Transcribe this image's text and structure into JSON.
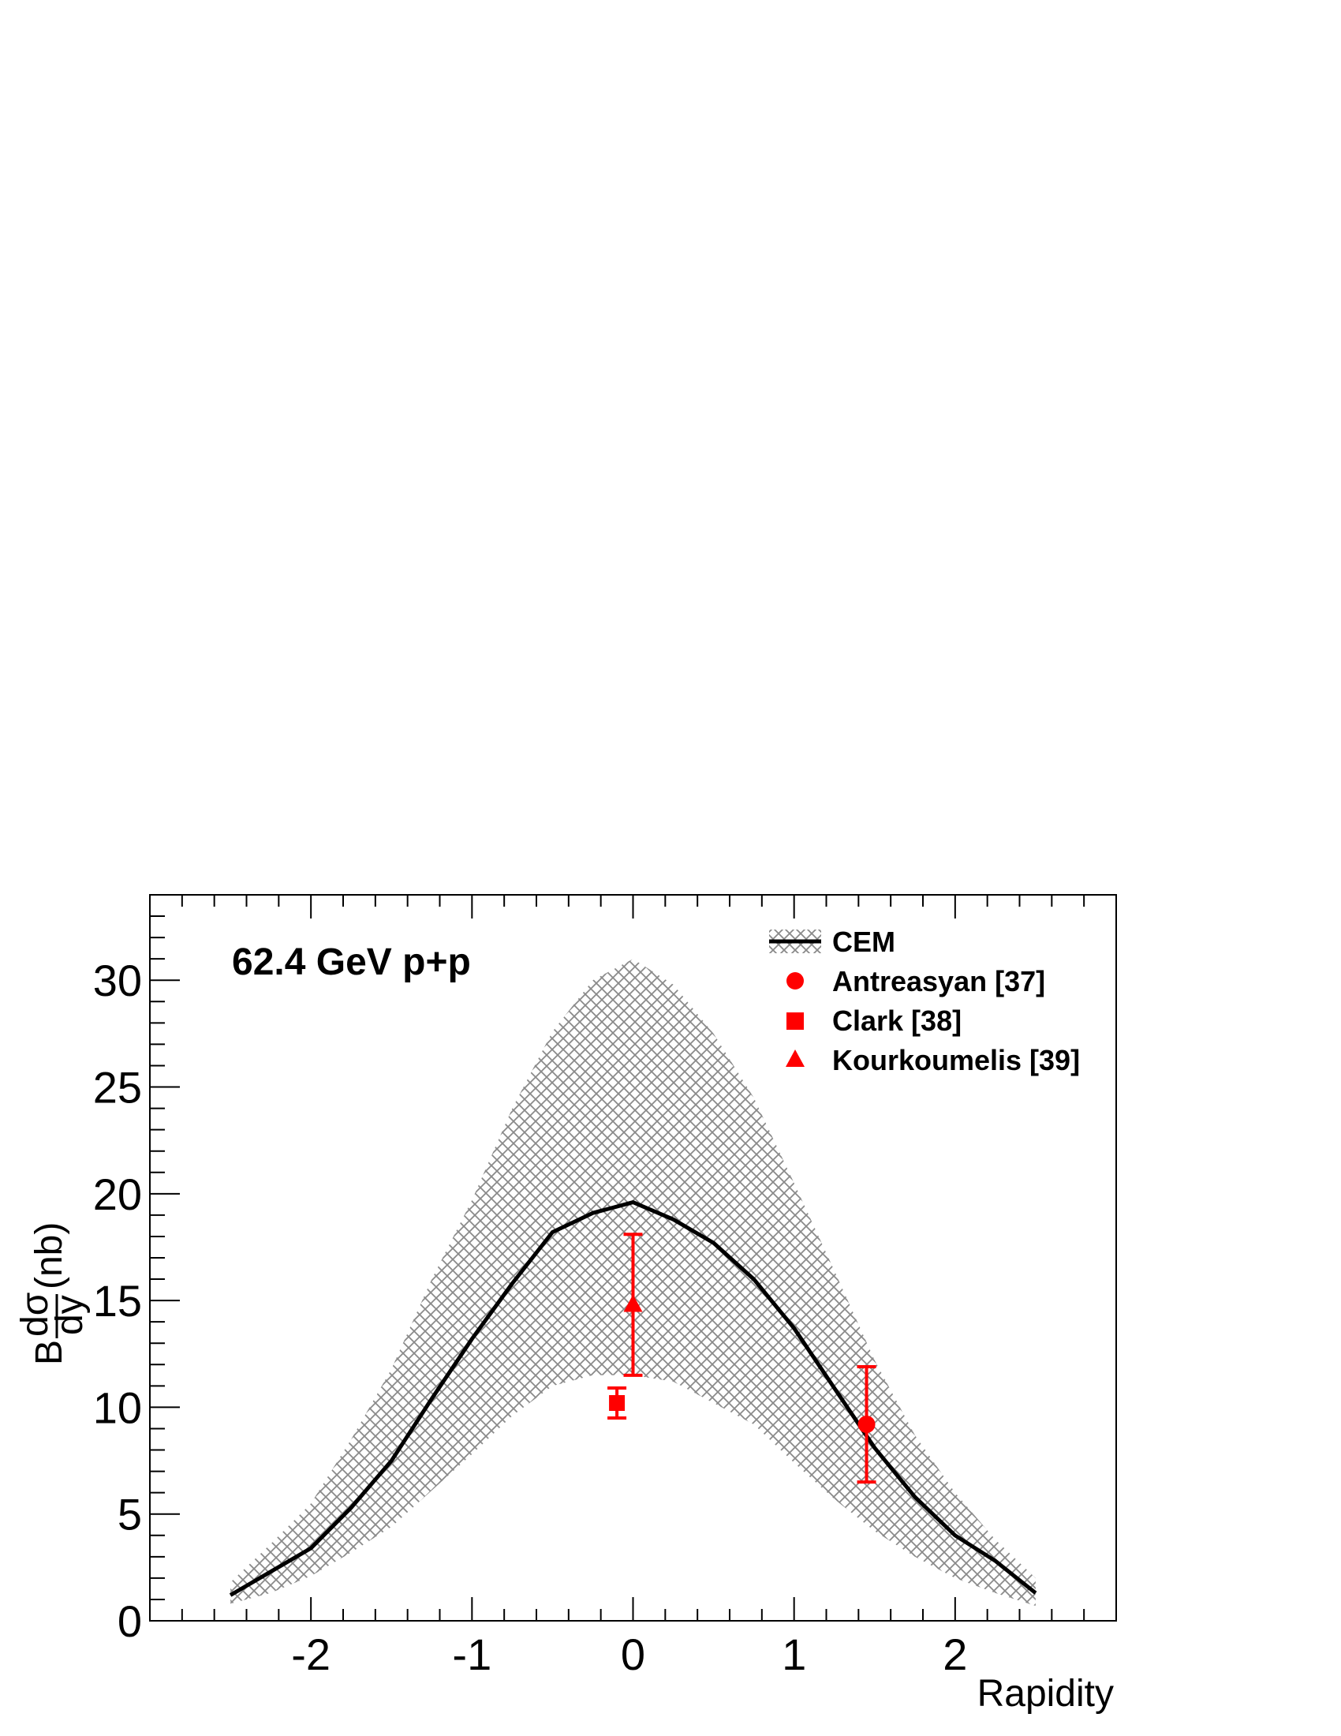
{
  "chart_data": {
    "type": "line",
    "annotation": "62.4 GeV p+p",
    "xlabel": "Rapidity",
    "ylabel": {
      "prefix": "B",
      "frac_num": "dσ",
      "frac_den": "dy",
      "unit": "(nb)"
    },
    "xlim": [
      -3.0,
      3.0
    ],
    "ylim": [
      0,
      34
    ],
    "x_major_ticks": [
      -2,
      -1,
      0,
      1,
      2
    ],
    "x_tick_labels": [
      "-2",
      "-1",
      "0",
      "1",
      "2"
    ],
    "y_major_ticks": [
      0,
      5,
      10,
      15,
      20,
      25,
      30
    ],
    "y_tick_labels": [
      "0",
      "5",
      "10",
      "15",
      "20",
      "25",
      "30"
    ],
    "legend": {
      "placement": "top-right",
      "entries": [
        {
          "label": "CEM",
          "marker": "line-band"
        },
        {
          "label": "Antreasyan [37]",
          "marker": "circle"
        },
        {
          "label": "Clark [38]",
          "marker": "square"
        },
        {
          "label": "Kourkoumelis [39]",
          "marker": "triangle"
        }
      ]
    },
    "colors": {
      "data": "#ff0000",
      "band": "#8a8a8a",
      "line": "#000000"
    },
    "cem": {
      "x": [
        -2.5,
        -2.25,
        -2.0,
        -1.75,
        -1.5,
        -1.25,
        -1.0,
        -0.75,
        -0.5,
        -0.25,
        0.0,
        0.25,
        0.5,
        0.75,
        1.0,
        1.25,
        1.5,
        1.75,
        2.0,
        2.25,
        2.5
      ],
      "central": [
        1.2,
        2.3,
        3.4,
        5.3,
        7.5,
        10.4,
        13.2,
        15.8,
        18.2,
        19.1,
        19.6,
        18.8,
        17.7,
        16.0,
        13.7,
        10.9,
        8.1,
        5.8,
        4.0,
        2.8,
        1.3
      ],
      "upper": [
        1.8,
        3.6,
        5.5,
        8.5,
        11.8,
        16.0,
        19.7,
        24.0,
        27.6,
        30.0,
        31.0,
        29.8,
        27.5,
        24.5,
        20.5,
        16.4,
        12.2,
        8.7,
        6.0,
        3.8,
        2.0
      ],
      "lower": [
        0.8,
        1.3,
        2.1,
        3.2,
        4.4,
        6.1,
        7.8,
        9.6,
        11.0,
        11.5,
        11.5,
        11.2,
        10.2,
        9.2,
        7.4,
        5.7,
        4.2,
        3.0,
        2.0,
        1.3,
        0.7
      ]
    },
    "series": [
      {
        "name": "Antreasyan [37]",
        "marker": "circle",
        "x": 1.45,
        "y": 9.2,
        "yerr_low": 6.5,
        "yerr_high": 11.9
      },
      {
        "name": "Clark [38]",
        "marker": "square",
        "x": -0.1,
        "y": 10.2,
        "yerr_low": 9.5,
        "yerr_high": 10.9
      },
      {
        "name": "Kourkoumelis [39]",
        "marker": "triangle",
        "x": 0.0,
        "y": 14.8,
        "yerr_low": 11.5,
        "yerr_high": 18.1
      }
    ]
  }
}
